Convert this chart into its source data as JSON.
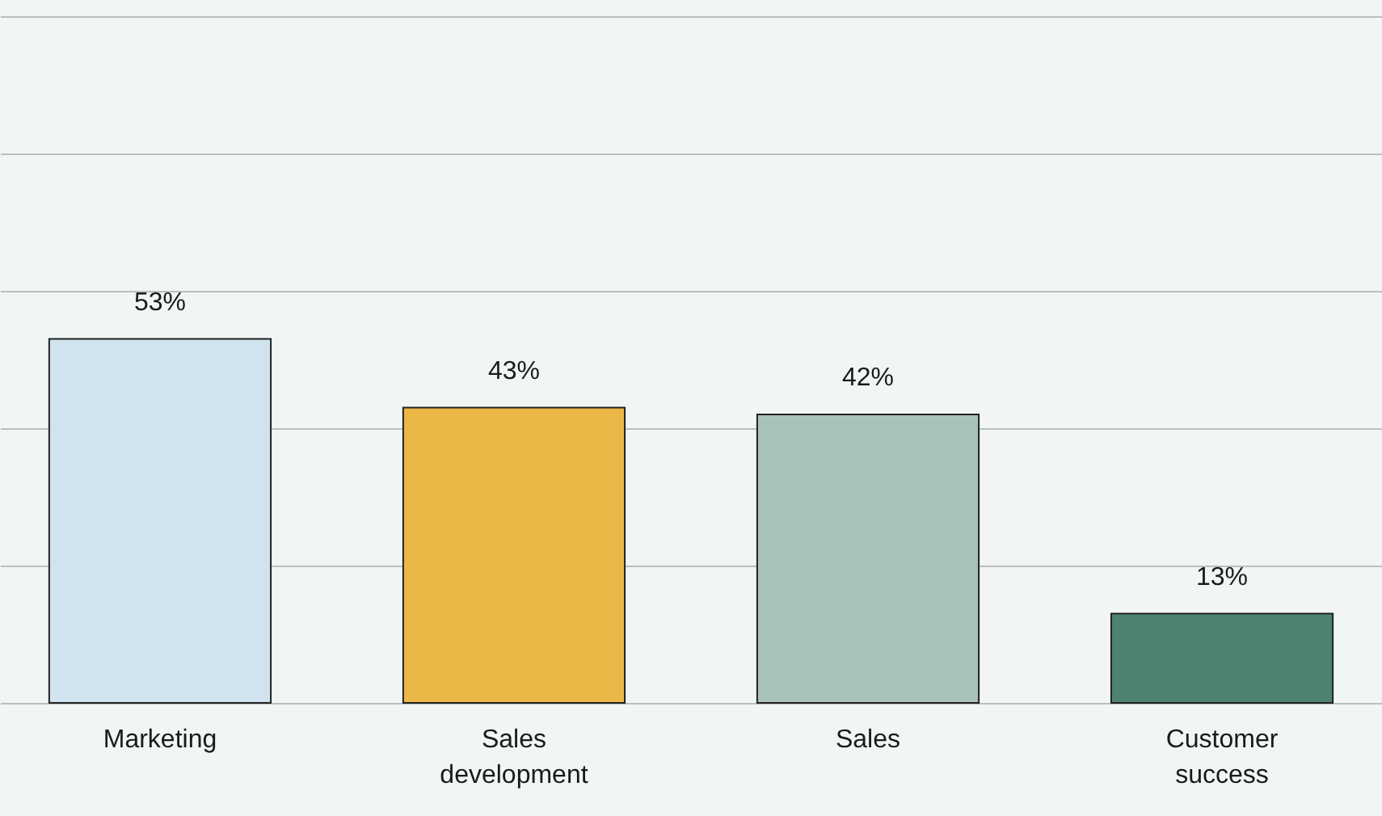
{
  "chart_data": {
    "type": "bar",
    "categories": [
      "Marketing",
      "Sales development",
      "Sales",
      "Customer success"
    ],
    "values": [
      53,
      43,
      42,
      13
    ],
    "value_labels": [
      "53%",
      "43%",
      "42%",
      "13%"
    ],
    "colors": [
      "#d0e3ee",
      "#ebb847",
      "#a9c2bb",
      "#4e8373"
    ],
    "ylim": [
      0,
      100
    ],
    "yticks": [
      {
        "value": 0,
        "label": null
      },
      {
        "value": 20,
        "label": null
      },
      {
        "value": 40,
        "label": null
      },
      {
        "value": 60,
        "label": null
      },
      {
        "value": 80,
        "label": null
      },
      {
        "value": 100,
        "label": null
      }
    ],
    "grid": "y",
    "tick_labels": "x"
  }
}
